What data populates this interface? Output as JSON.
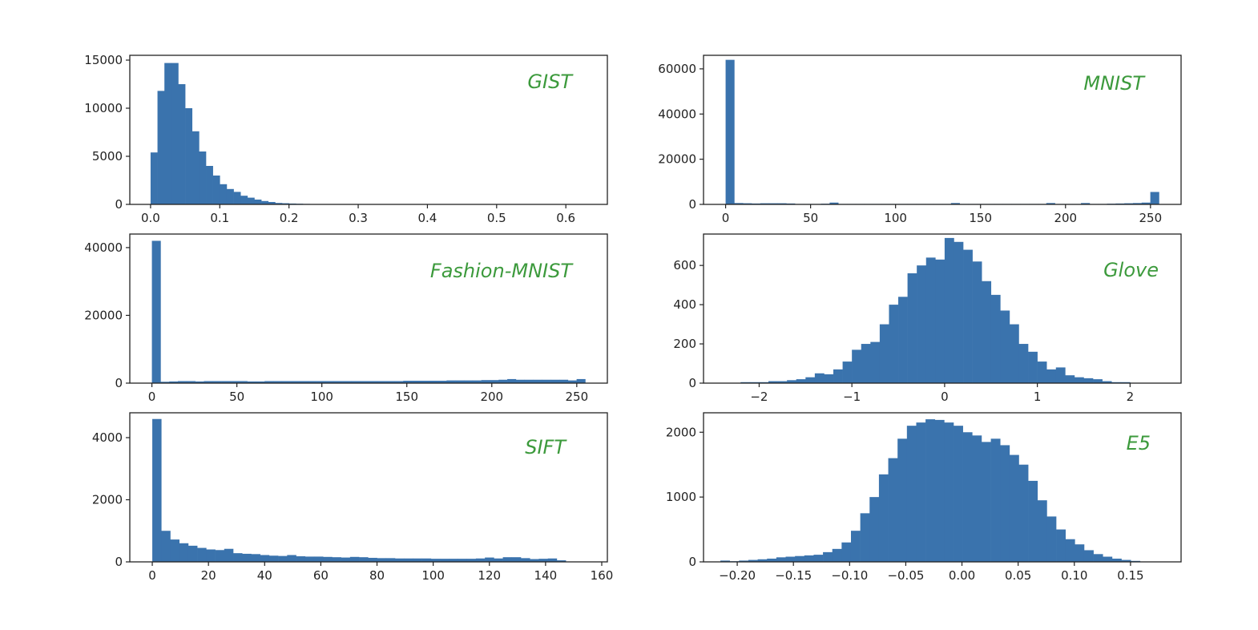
{
  "chart_data": [
    {
      "type": "histogram",
      "label": "GIST",
      "xlim": [
        -0.03,
        0.66
      ],
      "ylim": [
        0,
        15500
      ],
      "xticks": [
        0.0,
        0.1,
        0.2,
        0.3,
        0.4,
        0.5,
        0.6
      ],
      "xtick_labels": [
        "0.0",
        "0.1",
        "0.2",
        "0.3",
        "0.4",
        "0.5",
        "0.6"
      ],
      "yticks": [
        0,
        5000,
        10000,
        15000
      ],
      "ytick_labels": [
        "0",
        "5000",
        "10000",
        "15000"
      ],
      "bin_start": 0.0,
      "bin_width": 0.01,
      "counts": [
        5400,
        11800,
        14700,
        14700,
        12500,
        10000,
        7600,
        5500,
        4000,
        3000,
        2100,
        1600,
        1300,
        900,
        700,
        500,
        350,
        250,
        150,
        120,
        90,
        70,
        50,
        40,
        30,
        20,
        20,
        15,
        10,
        10
      ]
    },
    {
      "type": "histogram",
      "label": "MNIST",
      "xlim": [
        -13,
        268
      ],
      "ylim": [
        0,
        66000
      ],
      "xticks": [
        0,
        50,
        100,
        150,
        200,
        250
      ],
      "xtick_labels": [
        "0",
        "50",
        "100",
        "150",
        "200",
        "250"
      ],
      "yticks": [
        0,
        20000,
        40000,
        60000
      ],
      "ytick_labels": [
        "0",
        "20000",
        "40000",
        "60000"
      ],
      "bin_start": 0,
      "bin_width": 5.1,
      "counts": [
        64000,
        600,
        500,
        400,
        500,
        500,
        500,
        400,
        200,
        200,
        200,
        300,
        800,
        200,
        200,
        200,
        200,
        200,
        200,
        200,
        200,
        200,
        200,
        200,
        200,
        200,
        600,
        200,
        200,
        200,
        200,
        200,
        200,
        200,
        200,
        200,
        200,
        600,
        200,
        200,
        200,
        600,
        200,
        200,
        300,
        400,
        500,
        600,
        800,
        5500
      ]
    },
    {
      "type": "histogram",
      "label": "Fashion-MNIST",
      "xlim": [
        -13,
        268
      ],
      "ylim": [
        0,
        44000
      ],
      "xticks": [
        0,
        50,
        100,
        150,
        200,
        250
      ],
      "xtick_labels": [
        "0",
        "50",
        "100",
        "150",
        "200",
        "250"
      ],
      "yticks": [
        0,
        20000,
        40000
      ],
      "ytick_labels": [
        "0",
        "20000",
        "40000"
      ],
      "bin_start": 0,
      "bin_width": 5.1,
      "counts": [
        42000,
        400,
        500,
        600,
        600,
        500,
        600,
        600,
        600,
        600,
        600,
        500,
        500,
        600,
        600,
        600,
        600,
        600,
        600,
        600,
        600,
        600,
        600,
        600,
        600,
        600,
        600,
        600,
        600,
        700,
        700,
        700,
        700,
        700,
        800,
        800,
        800,
        800,
        900,
        900,
        1000,
        1200,
        1000,
        1000,
        1000,
        1000,
        1000,
        1000,
        800,
        1200
      ]
    },
    {
      "type": "histogram",
      "label": "Glove",
      "xlim": [
        -2.6,
        2.55
      ],
      "ylim": [
        0,
        760
      ],
      "xticks": [
        -2,
        -1,
        0,
        1,
        2
      ],
      "xtick_labels": [
        "−2",
        "−1",
        "0",
        "1",
        "2"
      ],
      "yticks": [
        0,
        200,
        400,
        600
      ],
      "ytick_labels": [
        "0",
        "200",
        "400",
        "600"
      ],
      "bin_start": -2.2,
      "bin_width": 0.1,
      "counts": [
        5,
        5,
        5,
        10,
        10,
        15,
        20,
        30,
        50,
        45,
        70,
        110,
        170,
        200,
        210,
        300,
        400,
        440,
        560,
        600,
        640,
        630,
        740,
        720,
        680,
        620,
        520,
        450,
        370,
        300,
        200,
        160,
        110,
        70,
        80,
        40,
        30,
        25,
        20,
        10,
        5,
        5
      ]
    },
    {
      "type": "histogram",
      "label": "SIFT",
      "xlim": [
        -8,
        162
      ],
      "ylim": [
        0,
        4800
      ],
      "xticks": [
        0,
        20,
        40,
        60,
        80,
        100,
        120,
        140,
        160
      ],
      "xtick_labels": [
        "0",
        "20",
        "40",
        "60",
        "80",
        "100",
        "120",
        "140",
        "160"
      ],
      "yticks": [
        0,
        2000,
        4000
      ],
      "ytick_labels": [
        "0",
        "2000",
        "4000"
      ],
      "bin_start": 0,
      "bin_width": 3.2,
      "counts": [
        4600,
        1000,
        720,
        600,
        520,
        450,
        400,
        380,
        420,
        280,
        260,
        250,
        220,
        200,
        190,
        220,
        180,
        170,
        170,
        160,
        150,
        140,
        160,
        150,
        130,
        120,
        120,
        110,
        110,
        110,
        110,
        100,
        100,
        100,
        100,
        100,
        110,
        140,
        110,
        150,
        150,
        120,
        90,
        100,
        110,
        50
      ]
    },
    {
      "type": "histogram",
      "label": "E5",
      "xlim": [
        -0.23,
        0.195
      ],
      "ylim": [
        0,
        2300
      ],
      "xticks": [
        -0.2,
        -0.15,
        -0.1,
        -0.05,
        0.0,
        0.05,
        0.1,
        0.15
      ],
      "xtick_labels": [
        "−0.20",
        "−0.15",
        "−0.10",
        "−0.05",
        "0.00",
        "0.05",
        "0.10",
        "0.15"
      ],
      "yticks": [
        0,
        1000,
        2000
      ],
      "ytick_labels": [
        "0",
        "1000",
        "2000"
      ],
      "bin_start": -0.215,
      "bin_width": 0.0083,
      "counts": [
        20,
        10,
        20,
        30,
        40,
        50,
        70,
        80,
        90,
        100,
        110,
        150,
        200,
        300,
        480,
        750,
        1000,
        1350,
        1600,
        1900,
        2100,
        2150,
        2200,
        2190,
        2150,
        2100,
        2000,
        1950,
        1850,
        1900,
        1800,
        1650,
        1500,
        1250,
        950,
        700,
        500,
        350,
        270,
        180,
        120,
        80,
        50,
        30,
        15
      ]
    }
  ],
  "colors": {
    "bar": "#3a73ad",
    "label": "#3c9a3c"
  }
}
